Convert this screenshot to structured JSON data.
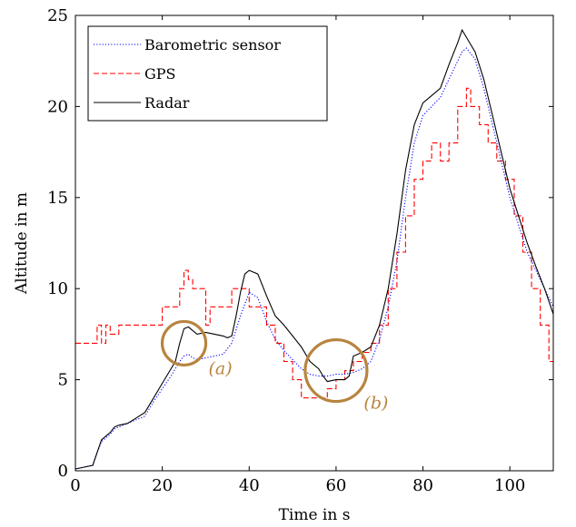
{
  "chart_data": {
    "type": "line",
    "title": "",
    "xlabel": "Time in s",
    "ylabel": "Altitude in m",
    "xlim": [
      0,
      110
    ],
    "ylim": [
      0,
      25
    ],
    "xticks": [
      0,
      20,
      40,
      60,
      80,
      100
    ],
    "yticks": [
      0,
      5,
      10,
      15,
      20,
      25
    ],
    "grid": false,
    "legend_position": "top-left",
    "series": [
      {
        "name": "Barometric sensor",
        "color": "#0000ff",
        "style": "dotted",
        "x": [
          0,
          2,
          4,
          5,
          6,
          7,
          8,
          9,
          10,
          12,
          14,
          16,
          18,
          20,
          22,
          24,
          25,
          26,
          27,
          28,
          30,
          32,
          34,
          36,
          38,
          40,
          42,
          44,
          46,
          48,
          50,
          52,
          54,
          56,
          58,
          60,
          62,
          64,
          66,
          68,
          70,
          72,
          74,
          76,
          78,
          80,
          82,
          84,
          86,
          88,
          89,
          90,
          92,
          94,
          96,
          98,
          100,
          102,
          104,
          106,
          108,
          110
        ],
        "y": [
          0.1,
          0.2,
          0.3,
          1.0,
          1.6,
          1.8,
          2.0,
          2.3,
          2.4,
          2.6,
          2.8,
          3.0,
          3.8,
          4.5,
          5.2,
          6.0,
          6.3,
          6.4,
          6.2,
          6.1,
          6.2,
          6.3,
          6.4,
          7.0,
          8.5,
          9.8,
          9.5,
          8.2,
          7.2,
          6.6,
          6.1,
          5.6,
          5.3,
          5.2,
          5.2,
          5.3,
          5.3,
          5.4,
          5.6,
          6.0,
          7.2,
          9.0,
          11.5,
          15.0,
          18.0,
          19.5,
          20.0,
          20.5,
          21.5,
          22.5,
          23.0,
          23.2,
          22.6,
          21.0,
          19.0,
          17.0,
          15.0,
          13.5,
          12.0,
          11.0,
          10.0,
          9.0
        ]
      },
      {
        "name": "GPS",
        "color": "#ff0000",
        "style": "dashed",
        "x": [
          0,
          5,
          5,
          6,
          6,
          7,
          7,
          8,
          8,
          10,
          10,
          14,
          14,
          20,
          20,
          24,
          24,
          25,
          25,
          26,
          26,
          27,
          27,
          28,
          28,
          30,
          30,
          31,
          31,
          36,
          36,
          38,
          38,
          40,
          40,
          44,
          44,
          46,
          46,
          48,
          48,
          50,
          50,
          52,
          52,
          58,
          58,
          60,
          60,
          62,
          62,
          64,
          64,
          66,
          66,
          68,
          68,
          70,
          70,
          72,
          72,
          74,
          74,
          76,
          76,
          78,
          78,
          80,
          80,
          82,
          82,
          84,
          84,
          86,
          86,
          88,
          88,
          90,
          90,
          91,
          91,
          93,
          93,
          95,
          95,
          97,
          97,
          99,
          99,
          101,
          101,
          103,
          103,
          105,
          105,
          107,
          107,
          109,
          109,
          110
        ],
        "y": [
          7,
          7,
          8,
          8,
          7,
          7,
          8,
          8,
          7.5,
          7.5,
          8,
          8,
          8,
          8,
          9,
          9,
          10,
          10,
          11,
          11,
          10.5,
          10.5,
          10,
          10,
          10,
          10,
          8,
          8,
          9,
          9,
          10,
          10,
          10,
          10,
          9,
          9,
          8,
          8,
          7,
          7,
          6,
          6,
          5,
          5,
          4,
          4,
          4.5,
          4.5,
          5,
          5,
          5.5,
          5.5,
          6,
          6,
          6.5,
          6.5,
          7,
          7,
          8,
          8,
          10,
          10,
          12,
          12,
          14,
          14,
          16,
          16,
          17,
          17,
          18,
          18,
          17,
          17,
          18,
          18,
          20,
          20,
          21,
          21,
          20,
          20,
          19,
          19,
          18,
          18,
          17,
          17,
          16,
          16,
          14,
          14,
          12,
          12,
          10,
          10,
          8,
          8,
          6,
          6
        ]
      },
      {
        "name": "Radar",
        "color": "#000000",
        "style": "solid",
        "x": [
          0,
          2,
          4,
          5,
          6,
          7,
          8,
          9,
          10,
          12,
          14,
          16,
          18,
          20,
          22,
          23,
          24,
          25,
          26,
          27,
          28,
          30,
          32,
          34,
          35,
          36,
          37,
          38,
          39,
          40,
          42,
          44,
          46,
          48,
          50,
          52,
          54,
          56,
          57,
          58,
          60,
          62,
          63,
          64,
          66,
          68,
          70,
          72,
          74,
          76,
          78,
          80,
          82,
          84,
          86,
          88,
          89,
          90,
          92,
          94,
          96,
          98,
          100,
          102,
          104,
          106,
          108,
          110
        ],
        "y": [
          0.1,
          0.2,
          0.3,
          1.0,
          1.7,
          1.9,
          2.1,
          2.4,
          2.5,
          2.6,
          2.9,
          3.2,
          4.0,
          4.8,
          5.6,
          6.0,
          7.0,
          7.8,
          7.9,
          7.7,
          7.5,
          7.6,
          7.5,
          7.4,
          7.3,
          7.4,
          8.5,
          9.8,
          10.8,
          11.0,
          10.8,
          9.6,
          8.5,
          8.0,
          7.4,
          6.8,
          6.0,
          5.6,
          5.2,
          4.9,
          5.0,
          5.0,
          5.2,
          6.3,
          6.5,
          6.8,
          8.0,
          10.0,
          13.0,
          16.5,
          19.0,
          20.2,
          20.6,
          21.0,
          22.3,
          23.5,
          24.2,
          23.8,
          23.0,
          21.5,
          19.5,
          17.5,
          15.5,
          14.0,
          12.5,
          11.2,
          10.0,
          8.6
        ]
      }
    ],
    "annotations": [
      {
        "label": "(a)",
        "color": "#b8843e",
        "x": 25,
        "y": 7
      },
      {
        "label": "(b)",
        "color": "#b8843e",
        "x": 60,
        "y": 5.5
      }
    ]
  }
}
